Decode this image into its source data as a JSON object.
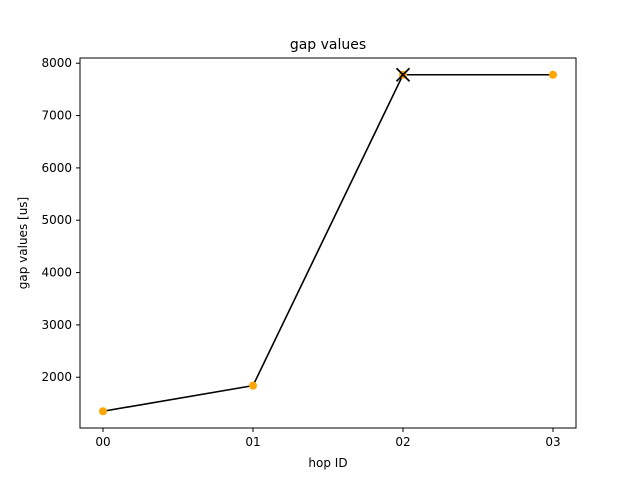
{
  "chart_data": {
    "type": "line",
    "title": "gap values",
    "xlabel": "hop ID",
    "ylabel": "gap values [us]",
    "categories": [
      "00",
      "01",
      "02",
      "03"
    ],
    "series": [
      {
        "values": [
          1350,
          1840,
          7780,
          7780
        ],
        "line_color": "#000000",
        "marker_color": "#ffa500"
      }
    ],
    "highlight": {
      "category": "02",
      "value": 7780,
      "marker": "x",
      "color": "#000000"
    },
    "ylim": [
      1030,
      8100
    ],
    "yticks": [
      2000,
      3000,
      4000,
      5000,
      6000,
      7000,
      8000
    ],
    "grid": false,
    "legend": false
  }
}
